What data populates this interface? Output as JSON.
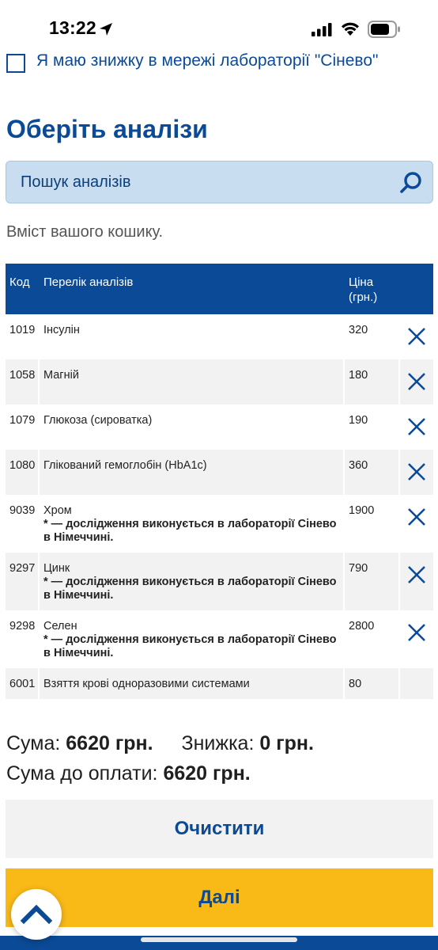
{
  "status": {
    "time": "13:22"
  },
  "discount": {
    "label": "Я маю знижку в мережі лабораторії \"Сінево\""
  },
  "section": {
    "title": "Оберіть аналізи"
  },
  "search": {
    "placeholder": "Пошук аналізів"
  },
  "cart": {
    "caption": "Вміст вашого кошику.",
    "headers": {
      "code": "Код",
      "name": "Перелік аналізів",
      "price_line1": "Ціна",
      "price_line2": "(грн.)"
    },
    "rows": [
      {
        "code": "1019",
        "name": "Інсулін",
        "note": "",
        "price": "320"
      },
      {
        "code": "1058",
        "name": "Магній",
        "note": "",
        "price": "180"
      },
      {
        "code": "1079",
        "name": "Глюкоза (сироватка)",
        "note": "",
        "price": "190"
      },
      {
        "code": "1080",
        "name": "Глікований гемоглобін (HbA1c)",
        "note": "",
        "price": "360"
      },
      {
        "code": "9039",
        "name": "Хром",
        "note": "* — дослідження виконується в лабораторії Сінево в Німеччині.",
        "price": "1900"
      },
      {
        "code": "9297",
        "name": "Цинк",
        "note": "* — дослідження виконується в лабораторії Сінево в Німеччині.",
        "price": "790"
      },
      {
        "code": "9298",
        "name": "Селен",
        "note": "* — дослідження виконується в лабораторії Сінево в Німеччині.",
        "price": "2800"
      },
      {
        "code": "6001",
        "name": "Взяття крові одноразовими системами",
        "note": "",
        "price": "80"
      }
    ]
  },
  "totals": {
    "sum_label": "Сума:",
    "sum_value": "6620 грн.",
    "discount_label": "Знижка:",
    "discount_value": "0 грн.",
    "pay_label": "Сума до оплати:",
    "pay_value": "6620 грн."
  },
  "buttons": {
    "clear": "Очистити",
    "next": "Далі"
  },
  "colors": {
    "brand_blue": "#0b4a96",
    "accent_yellow": "#f9b917",
    "search_bg": "#c8ddf0"
  }
}
